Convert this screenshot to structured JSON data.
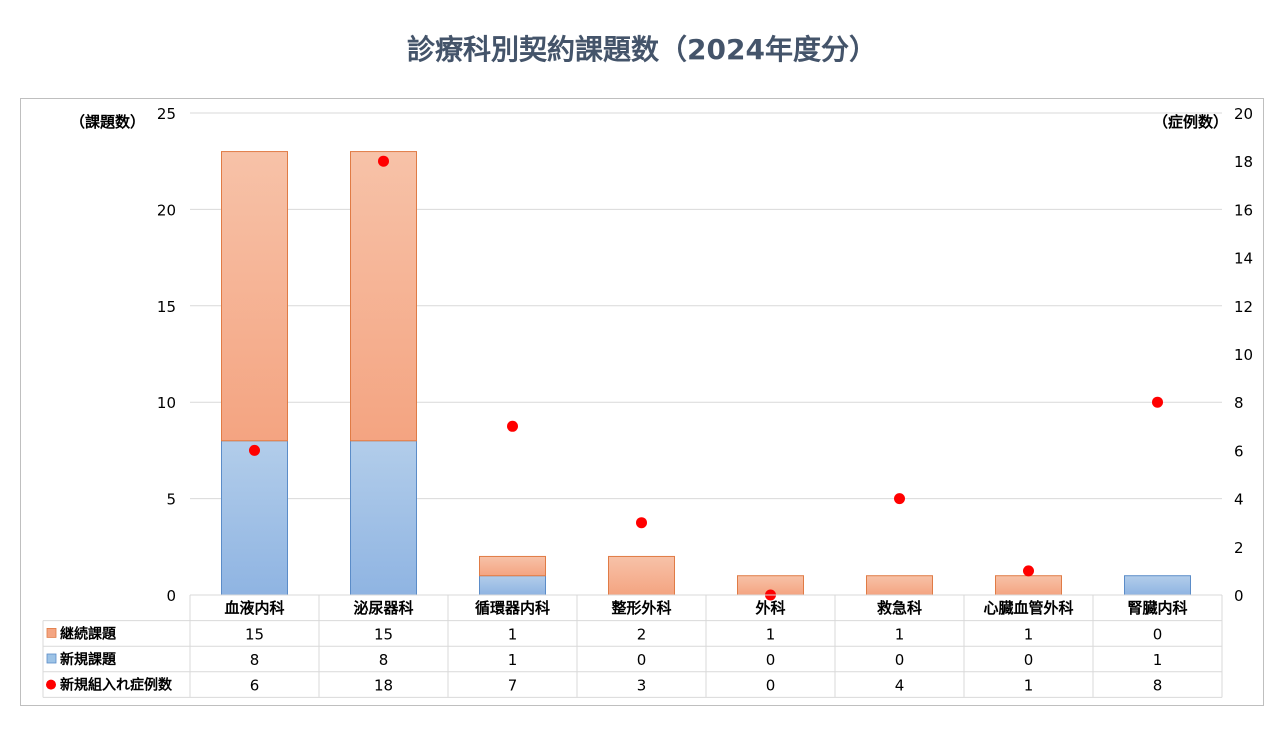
{
  "title": "診療科別契約課題数（2024年度分）",
  "chart_data": {
    "type": "bar",
    "stacked": true,
    "categories": [
      "血液内科",
      "泌尿器科",
      "循環器内科",
      "整形外科",
      "外科",
      "救急科",
      "心臓血管外科",
      "腎臓内科"
    ],
    "series": [
      {
        "name": "継続課題",
        "kind": "bar",
        "axis": "left",
        "color": "#f4a582",
        "values": [
          15,
          15,
          1,
          2,
          1,
          1,
          1,
          0
        ]
      },
      {
        "name": "新規課題",
        "kind": "bar",
        "axis": "left",
        "color": "#9dc3e6",
        "values": [
          8,
          8,
          1,
          0,
          0,
          0,
          0,
          1
        ]
      },
      {
        "name": "新規組入れ症例数",
        "kind": "scatter",
        "axis": "right",
        "color": "#ff0000",
        "values": [
          6,
          18,
          7,
          3,
          0,
          4,
          1,
          8
        ]
      }
    ],
    "ylabel_left": "（課題数）",
    "ylabel_right": "（症例数）",
    "ylim_left": [
      0,
      25
    ],
    "yticks_left": [
      0,
      5,
      10,
      15,
      20,
      25
    ],
    "ylim_right": [
      0,
      20
    ],
    "yticks_right": [
      0,
      2,
      4,
      6,
      8,
      10,
      12,
      14,
      16,
      18,
      20
    ],
    "grid": true,
    "legend": "data-table"
  }
}
